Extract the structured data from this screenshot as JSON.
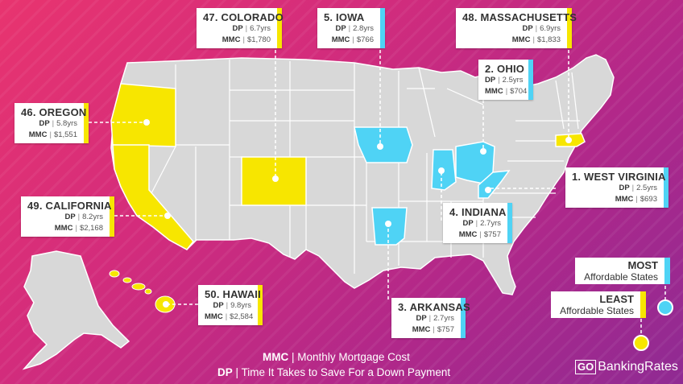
{
  "colors": {
    "least": "#f7e600",
    "most": "#4fd3f5",
    "land": "#d8d8d8",
    "border": "#ffffff"
  },
  "states": [
    {
      "rank": "47. COLORADO",
      "dp": "6.7yrs",
      "mmc": "$1,780",
      "group": "least"
    },
    {
      "rank": "5. IOWA",
      "dp": "2.8yrs",
      "mmc": "$766",
      "group": "most"
    },
    {
      "rank": "48. MASSACHUSETTS",
      "dp": "6.9yrs",
      "mmc": "$1,833",
      "group": "least"
    },
    {
      "rank": "2. OHIO",
      "dp": "2.5yrs",
      "mmc": "$704",
      "group": "most"
    },
    {
      "rank": "46. OREGON",
      "dp": "5.8yrs",
      "mmc": "$1,551",
      "group": "least"
    },
    {
      "rank": "1. WEST VIRGINIA",
      "dp": "2.5yrs",
      "mmc": "$693",
      "group": "most"
    },
    {
      "rank": "49. CALIFORNIA",
      "dp": "8.2yrs",
      "mmc": "$2,168",
      "group": "least"
    },
    {
      "rank": "4. INDIANA",
      "dp": "2.7yrs",
      "mmc": "$757",
      "group": "most"
    },
    {
      "rank": "50. HAWAII",
      "dp": "9.8yrs",
      "mmc": "$2,584",
      "group": "least"
    },
    {
      "rank": "3. ARKANSAS",
      "dp": "2.7yrs",
      "mmc": "$757",
      "group": "most"
    }
  ],
  "labels": {
    "dp": "DP",
    "mmc": "MMC"
  },
  "legend": {
    "most_bold": "MOST",
    "most_text": "Affordable States",
    "least_bold": "LEAST",
    "least_text": "Affordable States"
  },
  "footer": {
    "mmc_key": "MMC",
    "mmc_desc": "Monthly Mortgage Cost",
    "dp_key": "DP",
    "dp_desc": "Time It Takes to Save For a Down Payment",
    "sep": "|"
  },
  "brand": {
    "go": "GO",
    "name": "BankingRates"
  }
}
